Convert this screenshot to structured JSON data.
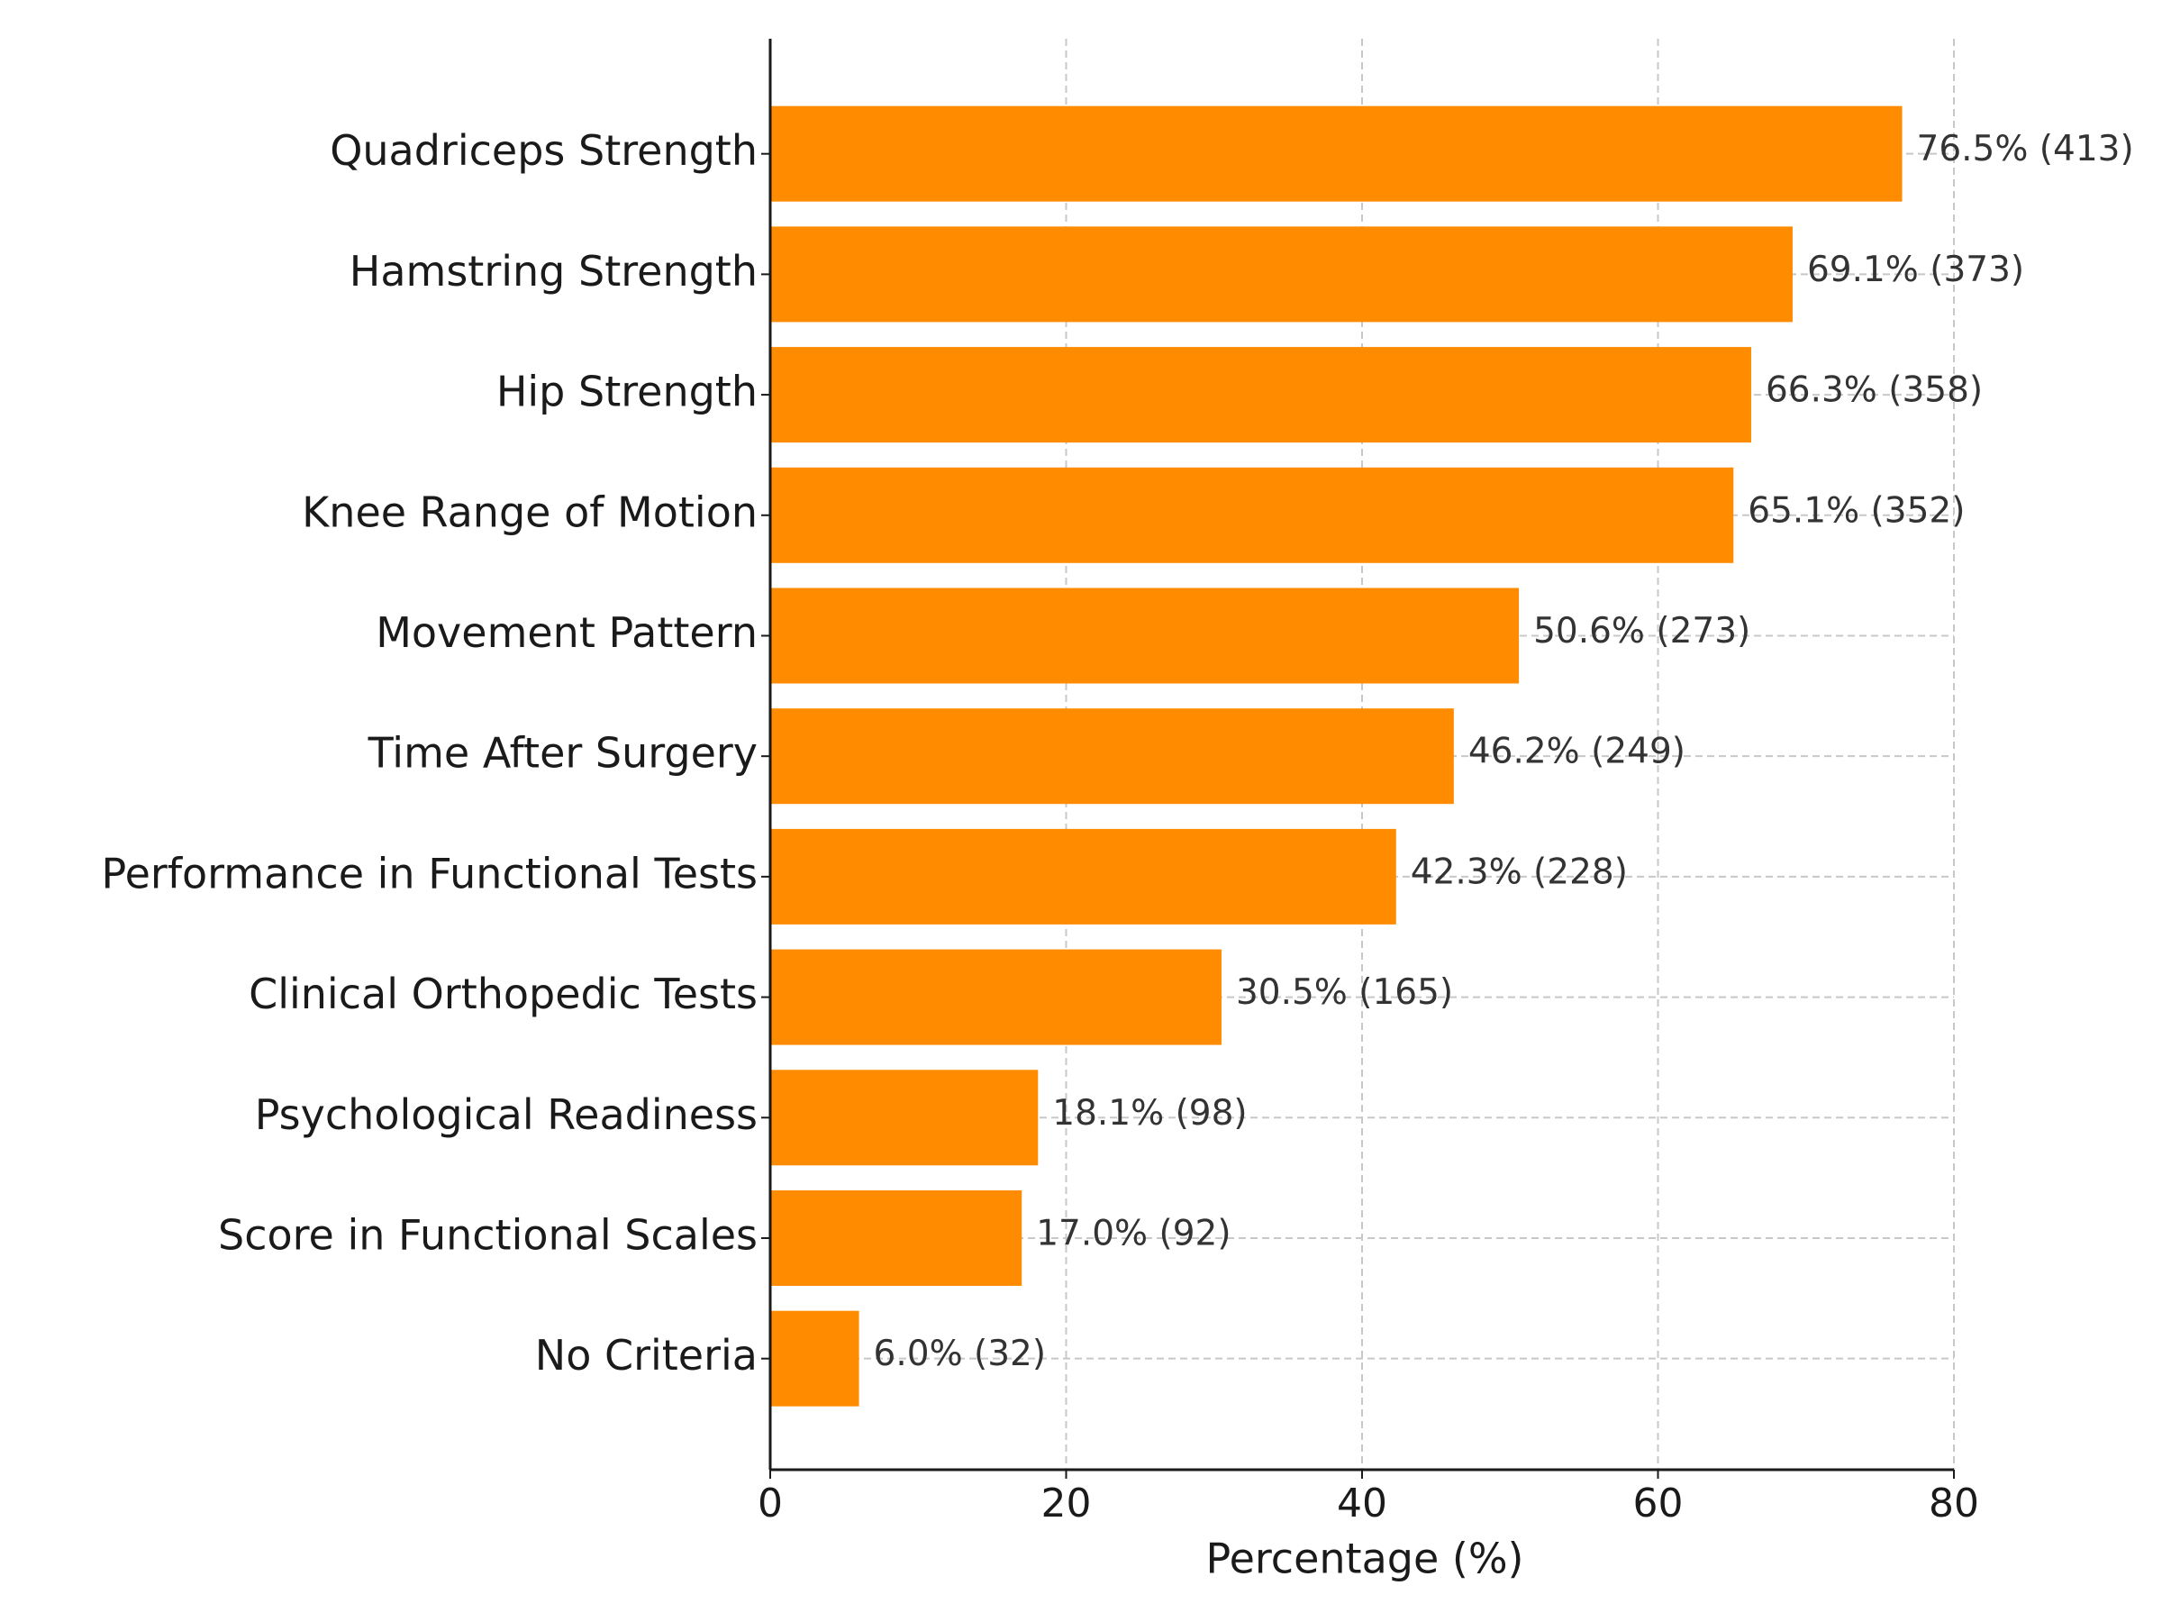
{
  "chart_data": {
    "type": "bar",
    "orientation": "horizontal",
    "x_label": "Percentage (%)",
    "categories": [
      "Quadriceps Strength",
      "Hamstring Strength",
      "Hip Strength",
      "Knee Range of Motion",
      "Movement Pattern",
      "Time After Surgery",
      "Performance in Functional Tests",
      "Clinical Orthopedic Tests",
      "Psychological Readiness",
      "Score in Functional Scales",
      "No Criteria"
    ],
    "values": [
      76.5,
      69.1,
      66.3,
      65.1,
      50.6,
      46.2,
      42.3,
      30.5,
      18.1,
      17.0,
      6.0
    ],
    "value_labels": [
      "76.5% (413)",
      "69.1% (373)",
      "66.3% (358)",
      "65.1% (352)",
      "50.6% (273)",
      "46.2% (249)",
      "42.3% (228)",
      "30.5% (165)",
      "18.1% (98)",
      "17.0% (92)",
      "6.0% (32)"
    ],
    "color": "#ff8c00",
    "xlim": [
      0,
      80
    ],
    "xticks": [
      0,
      20,
      40,
      60,
      80
    ],
    "grid": true
  }
}
